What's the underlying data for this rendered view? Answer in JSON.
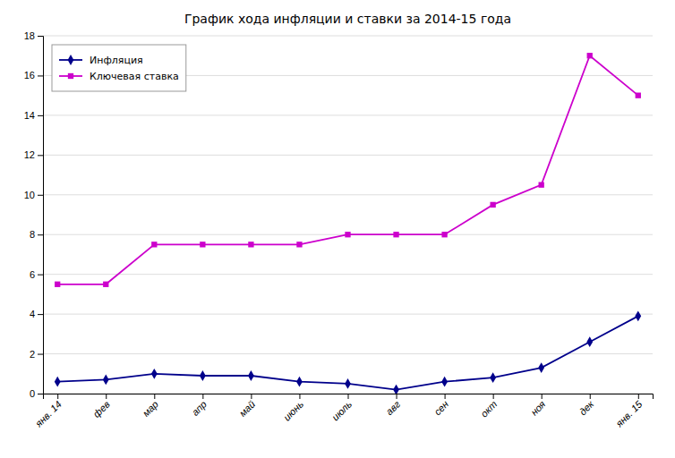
{
  "chart_data": {
    "type": "line",
    "title": "График хода инфляции и ставки за 2014-15 года",
    "categories": [
      "янв. 14",
      "фев",
      "мар",
      "апр",
      "май",
      "июнь",
      "июль",
      "авг",
      "сен",
      "окт",
      "ноя",
      "дек",
      "янв. 15"
    ],
    "series": [
      {
        "name": "Инфляция",
        "color": "#00008B",
        "marker": "diamond",
        "values": [
          0.6,
          0.7,
          1.0,
          0.9,
          0.9,
          0.6,
          0.5,
          0.2,
          0.6,
          0.8,
          1.3,
          2.6,
          3.9
        ]
      },
      {
        "name": "Ключевая ставка",
        "color": "#CC00CC",
        "marker": "square",
        "values": [
          5.5,
          5.5,
          7.5,
          7.5,
          7.5,
          7.5,
          8.0,
          8.0,
          8.0,
          9.5,
          10.5,
          17.0,
          15.0
        ]
      }
    ],
    "ylim": [
      0,
      18
    ],
    "yticks": [
      0,
      2,
      4,
      6,
      8,
      10,
      12,
      14,
      16,
      18
    ],
    "grid": true,
    "legend": "upper left"
  }
}
